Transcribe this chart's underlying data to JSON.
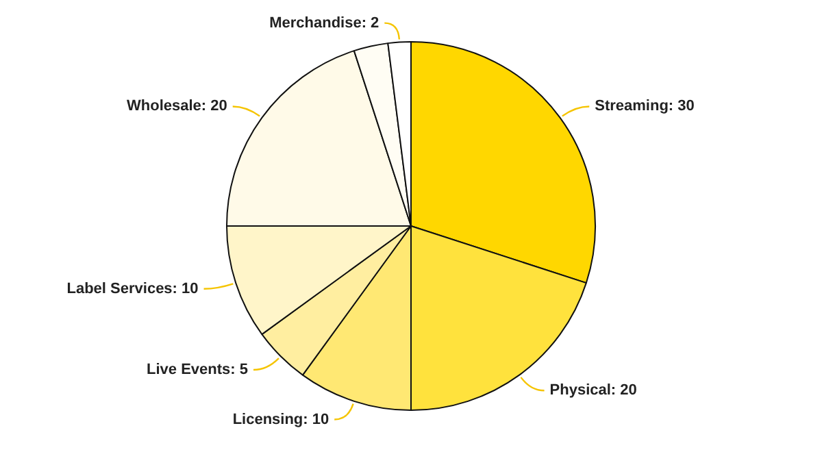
{
  "chart_data": {
    "type": "pie",
    "categories": [
      "Streaming",
      "Physical",
      "Licensing",
      "Live Events",
      "Label Services",
      "Wholesale",
      null,
      "Merchandise"
    ],
    "values": [
      30,
      20,
      10,
      5,
      10,
      20,
      3,
      2
    ],
    "colors": [
      "#ffd700",
      "#ffe23d",
      "#ffe873",
      "#ffeea0",
      "#fff5c9",
      "#fffae8",
      "#fffdf4",
      "#ffffff"
    ],
    "value_labels": [
      "30",
      "20",
      "10",
      "5",
      "10",
      "20",
      null,
      "2"
    ],
    "legend": false
  }
}
